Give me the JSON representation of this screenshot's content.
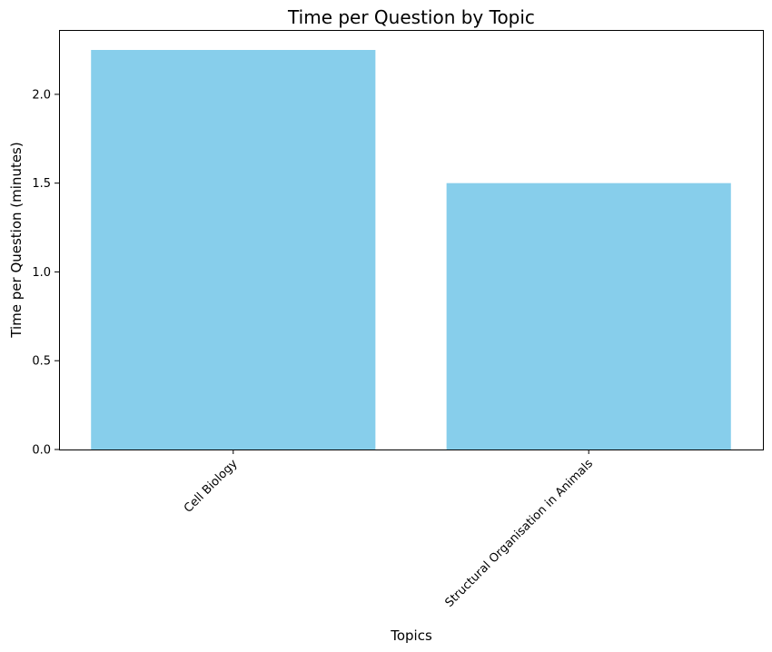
{
  "chart_data": {
    "type": "bar",
    "title": "Time per Question by Topic",
    "xlabel": "Topics",
    "ylabel": "Time per Question (minutes)",
    "categories": [
      "Cell Biology",
      "Structural Organisation in Animals"
    ],
    "values": [
      2.25,
      1.5
    ],
    "ylim": [
      0,
      2.3625
    ],
    "yticks": [
      0.0,
      0.5,
      1.0,
      1.5,
      2.0
    ],
    "ytick_labels": [
      "0.0",
      "0.5",
      "1.0",
      "1.5",
      "2.0"
    ],
    "bar_color": "#87CEEB",
    "grid": false,
    "xtick_rotation_deg": 45
  }
}
